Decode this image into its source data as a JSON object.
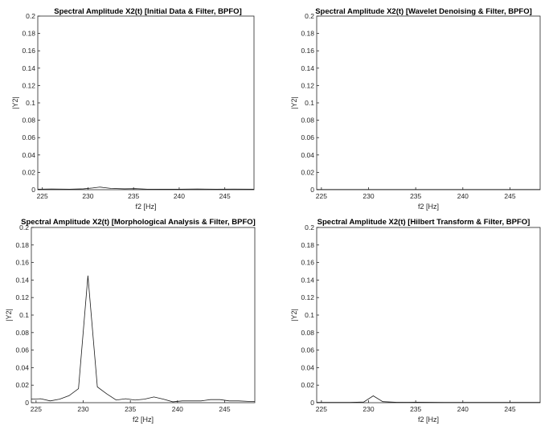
{
  "chart_data": [
    {
      "type": "line",
      "title": "Spectral Amplitude X2(t) [Initial Data & Filter, BPFO]",
      "xlabel": "f2 [Hz]",
      "ylabel": "|Y2|",
      "xlim": [
        224.5,
        248.2
      ],
      "ylim": [
        0,
        0.2
      ],
      "xticks": [
        225,
        230,
        235,
        240,
        245
      ],
      "yticks": [
        0,
        0.02,
        0.04,
        0.06,
        0.08,
        0.1,
        0.12,
        0.14,
        0.16,
        0.18,
        0.2
      ],
      "grid": true,
      "color": "#1a1a1a",
      "x": [
        224.5,
        226,
        228,
        229.5,
        230.5,
        231.3,
        232.5,
        234,
        235.2,
        236.5,
        238,
        240,
        242,
        244,
        246,
        248.2
      ],
      "y": [
        0.0005,
        0.0008,
        0.0005,
        0.001,
        0.002,
        0.003,
        0.0015,
        0.001,
        0.0012,
        0.0006,
        0.0005,
        0.0005,
        0.0008,
        0.0005,
        0.0007,
        0.0005
      ]
    },
    {
      "type": "line",
      "title": "Spectral Amplitude X2(t) [Wavelet Denoising & Filter, BPFO]",
      "xlabel": "f2 [Hz]",
      "ylabel": "|Y2|",
      "xlim": [
        224.5,
        248.2
      ],
      "ylim": [
        0,
        0.2
      ],
      "xticks": [
        225,
        230,
        235,
        240,
        245
      ],
      "yticks": [
        0,
        0.02,
        0.04,
        0.06,
        0.08,
        0.1,
        0.12,
        0.14,
        0.16,
        0.18,
        0.2
      ],
      "grid": true,
      "color": "#1a1a1a",
      "x": [
        224.5,
        230,
        235,
        240,
        245,
        248.2
      ],
      "y": [
        0.0002,
        0.0002,
        0.0002,
        0.0002,
        0.0002,
        0.0002
      ]
    },
    {
      "type": "line",
      "title": "Spectral Amplitude X2(t) [Morphological Analysis & Filter, BPFO]",
      "xlabel": "f2 [Hz]",
      "ylabel": "|Y2|",
      "xlim": [
        224.5,
        248.2
      ],
      "ylim": [
        0,
        0.2
      ],
      "xticks": [
        225,
        230,
        235,
        240,
        245
      ],
      "yticks": [
        0,
        0.02,
        0.04,
        0.06,
        0.08,
        0.1,
        0.12,
        0.14,
        0.16,
        0.18,
        0.2
      ],
      "grid": true,
      "color": "#1a1a1a",
      "x": [
        224.5,
        225.5,
        226.5,
        227.5,
        228.5,
        229.5,
        230.5,
        231.5,
        232.5,
        233.5,
        234.5,
        235.5,
        236.5,
        237.5,
        238.5,
        239.5,
        240.5,
        241.5,
        242.5,
        243.5,
        244.5,
        245.5,
        246.5,
        247.5,
        248.2
      ],
      "y": [
        0.004,
        0.0045,
        0.002,
        0.004,
        0.008,
        0.016,
        0.145,
        0.018,
        0.01,
        0.003,
        0.0045,
        0.003,
        0.004,
        0.0065,
        0.004,
        0.001,
        0.002,
        0.002,
        0.002,
        0.0035,
        0.0035,
        0.002,
        0.002,
        0.0015,
        0.0015
      ]
    },
    {
      "type": "line",
      "title": "Spectral Amplitude X2(t) [Hilbert Transform & Filter, BPFO]",
      "xlabel": "f2 [Hz]",
      "ylabel": "|Y2|",
      "xlim": [
        224.5,
        248.2
      ],
      "ylim": [
        0,
        0.2
      ],
      "xticks": [
        225,
        230,
        235,
        240,
        245
      ],
      "yticks": [
        0,
        0.02,
        0.04,
        0.06,
        0.08,
        0.1,
        0.12,
        0.14,
        0.16,
        0.18,
        0.2
      ],
      "grid": true,
      "color": "#1a1a1a",
      "x": [
        224.5,
        226,
        228,
        229.5,
        230.5,
        231.5,
        233,
        235,
        238,
        241,
        244,
        248.2
      ],
      "y": [
        0.0003,
        0.0003,
        0.0003,
        0.0008,
        0.0078,
        0.0012,
        0.0004,
        0.0005,
        0.0003,
        0.0003,
        0.0003,
        0.0003
      ]
    }
  ]
}
